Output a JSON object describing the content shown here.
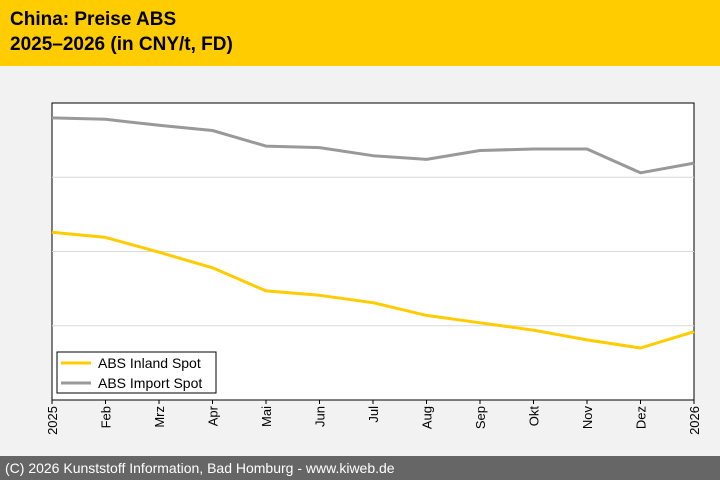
{
  "header": {
    "title": "China: Preise ABS",
    "subtitle": "2025–2026 (in CNY/t, FD)"
  },
  "footer": {
    "text": "(C) 2026 Kunststoff Information, Bad Homburg - www.kiweb.de"
  },
  "colors": {
    "header_bg": "#ffcc00",
    "footer_bg": "#666666",
    "inland": "#ffcc00",
    "import": "#999999"
  },
  "chart_data": {
    "type": "line",
    "title": "China: Preise ABS",
    "subtitle": "2025–2026 (in CNY/t, FD)",
    "xlabel": "",
    "ylabel": "",
    "categories": [
      "2025",
      "Feb",
      "Mrz",
      "Apr",
      "Mai",
      "Jun",
      "Jul",
      "Aug",
      "Sep",
      "Okt",
      "Nov",
      "Dez",
      "2026"
    ],
    "ylim": [
      0,
      4
    ],
    "y_ticks_labeled": false,
    "grid": true,
    "legend_position": "bottom-left",
    "series": [
      {
        "name": "ABS Inland Spot",
        "color": "#ffcc00",
        "values": [
          2.26,
          2.19,
          1.99,
          1.78,
          1.47,
          1.41,
          1.31,
          1.14,
          1.04,
          0.94,
          0.81,
          0.7,
          0.92
        ]
      },
      {
        "name": "ABS Import Spot",
        "color": "#999999",
        "values": [
          3.8,
          3.78,
          3.7,
          3.63,
          3.42,
          3.4,
          3.29,
          3.24,
          3.36,
          3.38,
          3.38,
          3.06,
          3.19
        ]
      }
    ]
  }
}
